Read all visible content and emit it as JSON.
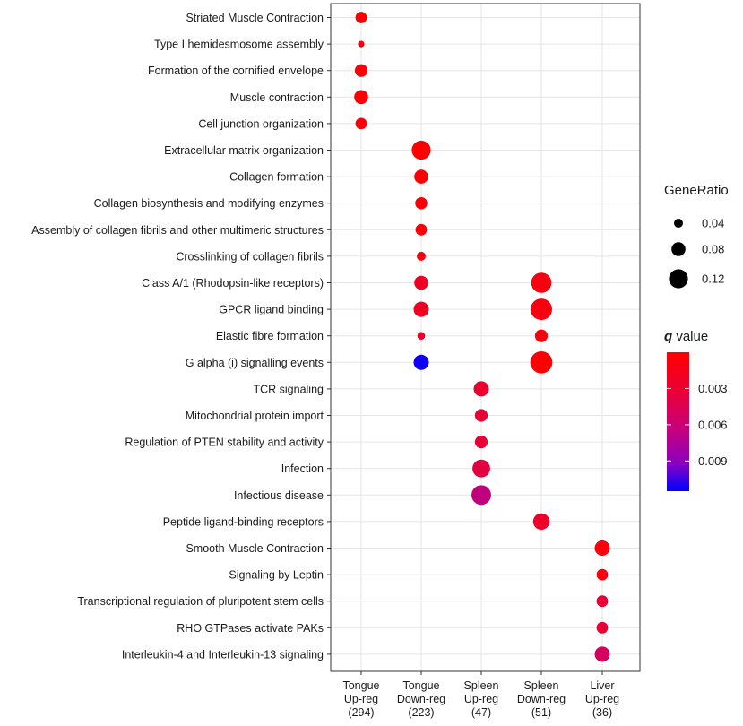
{
  "chart_data": {
    "type": "dot",
    "title": "",
    "xlabel": "",
    "ylabel": "",
    "categories": [
      [
        "Tongue",
        "Up-reg",
        "(294)"
      ],
      [
        "Tongue",
        "Down-reg",
        "(223)"
      ],
      [
        "Spleen",
        "Up-reg",
        "(47)"
      ],
      [
        "Spleen",
        "Down-reg",
        "(51)"
      ],
      [
        "Liver",
        "Up-reg",
        "(36)"
      ]
    ],
    "pathways": [
      "Striated Muscle Contraction",
      "Type I hemidesmosome assembly",
      "Formation of the cornified envelope",
      "Muscle contraction",
      "Cell junction organization",
      "Extracellular matrix organization",
      "Collagen formation",
      "Collagen biosynthesis and modifying enzymes",
      "Assembly of collagen fibrils and other multimeric structures",
      "Crosslinking of collagen fibrils",
      "Class A/1 (Rhodopsin-like receptors)",
      "GPCR ligand binding",
      "Elastic fibre formation",
      "G alpha (i) signalling events",
      "TCR signaling",
      "Mitochondrial protein import",
      "Regulation of PTEN stability and activity",
      "Infection",
      "Infectious disease",
      "Peptide ligand-binding receptors",
      "Smooth Muscle Contraction",
      "Signaling by Leptin",
      "Transcriptional regulation of pluripotent stem cells",
      "RHO GTPases activate PAKs",
      "Interleukin-4 and Interleukin-13 signaling"
    ],
    "points": [
      {
        "pathway": 0,
        "group": 0,
        "gene_ratio": 0.06,
        "q": 0.0002
      },
      {
        "pathway": 1,
        "group": 0,
        "gene_ratio": 0.02,
        "q": 0.0003
      },
      {
        "pathway": 2,
        "group": 0,
        "gene_ratio": 0.07,
        "q": 0.0003
      },
      {
        "pathway": 3,
        "group": 0,
        "gene_ratio": 0.08,
        "q": 0.0003
      },
      {
        "pathway": 4,
        "group": 0,
        "gene_ratio": 0.06,
        "q": 0.0004
      },
      {
        "pathway": 5,
        "group": 1,
        "gene_ratio": 0.12,
        "q": 0.0001
      },
      {
        "pathway": 6,
        "group": 1,
        "gene_ratio": 0.08,
        "q": 0.0002
      },
      {
        "pathway": 7,
        "group": 1,
        "gene_ratio": 0.065,
        "q": 0.0003
      },
      {
        "pathway": 8,
        "group": 1,
        "gene_ratio": 0.06,
        "q": 0.0004
      },
      {
        "pathway": 9,
        "group": 1,
        "gene_ratio": 0.04,
        "q": 0.0005
      },
      {
        "pathway": 10,
        "group": 1,
        "gene_ratio": 0.08,
        "q": 0.0018
      },
      {
        "pathway": 11,
        "group": 1,
        "gene_ratio": 0.09,
        "q": 0.0018
      },
      {
        "pathway": 12,
        "group": 1,
        "gene_ratio": 0.03,
        "q": 0.0022
      },
      {
        "pathway": 13,
        "group": 1,
        "gene_ratio": 0.09,
        "q": 0.0112
      },
      {
        "pathway": 10,
        "group": 3,
        "gene_ratio": 0.13,
        "q": 0.0008
      },
      {
        "pathway": 11,
        "group": 3,
        "gene_ratio": 0.14,
        "q": 0.0008
      },
      {
        "pathway": 12,
        "group": 3,
        "gene_ratio": 0.07,
        "q": 0.0006
      },
      {
        "pathway": 13,
        "group": 3,
        "gene_ratio": 0.145,
        "q": 0.0002
      },
      {
        "pathway": 19,
        "group": 3,
        "gene_ratio": 0.1,
        "q": 0.0022
      },
      {
        "pathway": 14,
        "group": 2,
        "gene_ratio": 0.09,
        "q": 0.0024
      },
      {
        "pathway": 15,
        "group": 2,
        "gene_ratio": 0.07,
        "q": 0.0028
      },
      {
        "pathway": 16,
        "group": 2,
        "gene_ratio": 0.07,
        "q": 0.0028
      },
      {
        "pathway": 17,
        "group": 2,
        "gene_ratio": 0.11,
        "q": 0.0032
      },
      {
        "pathway": 18,
        "group": 2,
        "gene_ratio": 0.125,
        "q": 0.0065
      },
      {
        "pathway": 20,
        "group": 4,
        "gene_ratio": 0.09,
        "q": 0.0006
      },
      {
        "pathway": 21,
        "group": 4,
        "gene_ratio": 0.06,
        "q": 0.0008
      },
      {
        "pathway": 22,
        "group": 4,
        "gene_ratio": 0.06,
        "q": 0.0028
      },
      {
        "pathway": 23,
        "group": 4,
        "gene_ratio": 0.06,
        "q": 0.0028
      },
      {
        "pathway": 24,
        "group": 4,
        "gene_ratio": 0.09,
        "q": 0.005
      }
    ],
    "size_legend": {
      "title": "GeneRatio",
      "values": [
        0.04,
        0.08,
        0.12
      ],
      "labels": [
        "0.04",
        "0.08",
        "0.12"
      ]
    },
    "color_legend": {
      "title_italic": "q",
      "title_rest": " value",
      "min": 0.0,
      "max": 0.0115,
      "ticks": [
        0.003,
        0.006,
        0.009
      ],
      "tick_labels": [
        "0.003",
        "0.006",
        "0.009"
      ],
      "colors": {
        "low": "#ff0000",
        "mid": "#c8007a",
        "high": "#0000ff"
      }
    },
    "grid": true,
    "legend_position": "right"
  }
}
